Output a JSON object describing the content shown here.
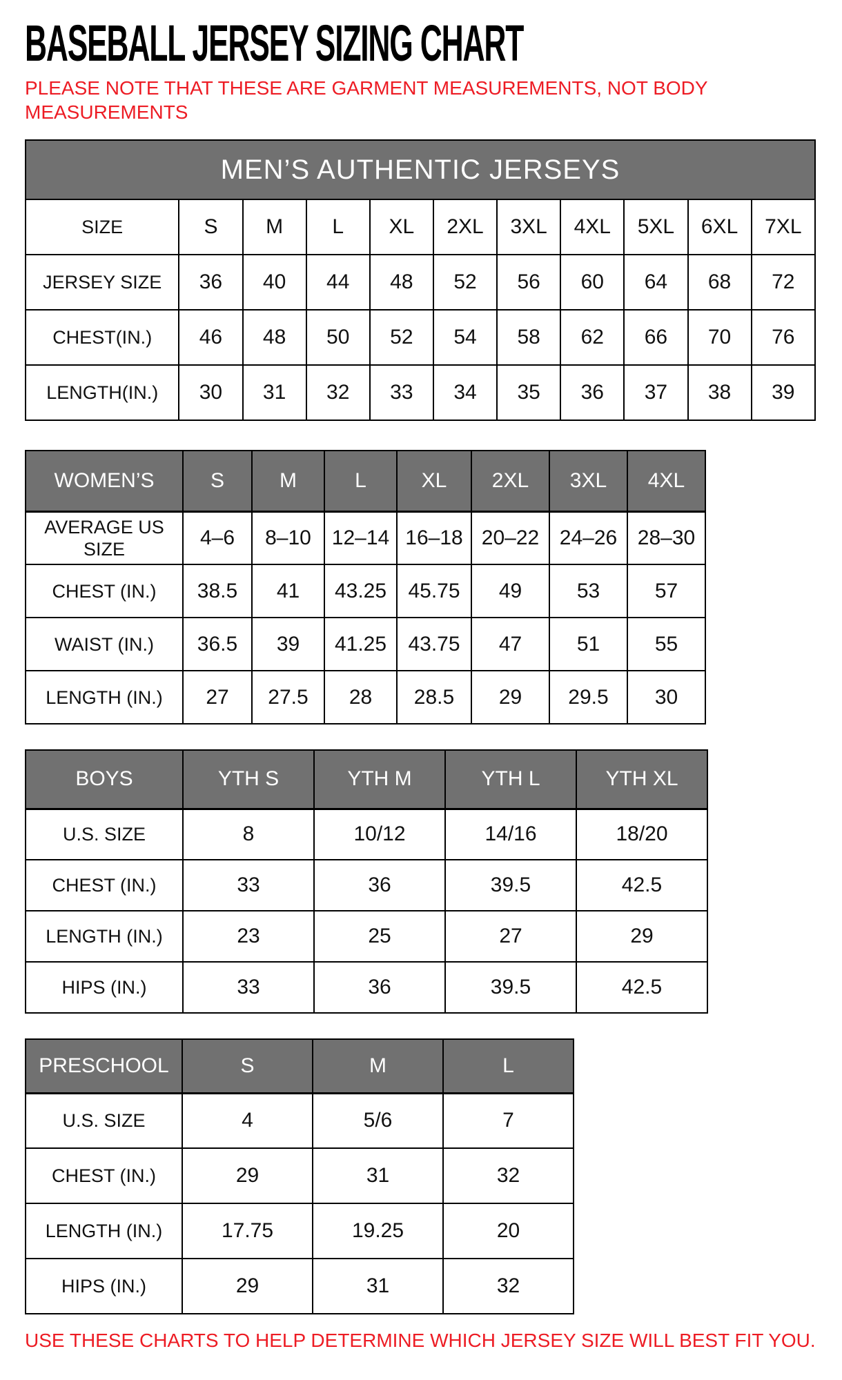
{
  "title": "BASEBALL JERSEY SIZING CHART",
  "note": "PLEASE NOTE THAT THESE ARE GARMENT MEASUREMENTS, NOT BODY MEASUREMENTS",
  "footer": "USE THESE CHARTS TO HELP DETERMINE WHICH JERSEY SIZE WILL BEST FIT YOU.",
  "colors": {
    "accent_red": "#ed1c24",
    "header_gray": "#717171",
    "border_black": "#000000"
  },
  "chart_data": [
    {
      "type": "table",
      "id": "mens",
      "banner": "MEN’S AUTHENTIC JERSEYS",
      "rows": [
        {
          "label": "SIZE",
          "values": [
            "S",
            "M",
            "L",
            "XL",
            "2XL",
            "3XL",
            "4XL",
            "5XL",
            "6XL",
            "7XL"
          ]
        },
        {
          "label": "JERSEY SIZE",
          "values": [
            "36",
            "40",
            "44",
            "48",
            "52",
            "56",
            "60",
            "64",
            "68",
            "72"
          ]
        },
        {
          "label": "CHEST(IN.)",
          "values": [
            "46",
            "48",
            "50",
            "52",
            "54",
            "58",
            "62",
            "66",
            "70",
            "76"
          ]
        },
        {
          "label": "LENGTH(IN.)",
          "values": [
            "30",
            "31",
            "32",
            "33",
            "34",
            "35",
            "36",
            "37",
            "38",
            "39"
          ]
        }
      ]
    },
    {
      "type": "table",
      "id": "womens",
      "header": {
        "label": "WOMEN’S",
        "values": [
          "S",
          "M",
          "L",
          "XL",
          "2XL",
          "3XL",
          "4XL"
        ]
      },
      "rows": [
        {
          "label": "AVERAGE US SIZE",
          "values": [
            "4–6",
            "8–10",
            "12–14",
            "16–18",
            "20–22",
            "24–26",
            "28–30"
          ]
        },
        {
          "label": "CHEST (IN.)",
          "values": [
            "38.5",
            "41",
            "43.25",
            "45.75",
            "49",
            "53",
            "57"
          ]
        },
        {
          "label": "WAIST (IN.)",
          "values": [
            "36.5",
            "39",
            "41.25",
            "43.75",
            "47",
            "51",
            "55"
          ]
        },
        {
          "label": "LENGTH (IN.)",
          "values": [
            "27",
            "27.5",
            "28",
            "28.5",
            "29",
            "29.5",
            "30"
          ]
        }
      ]
    },
    {
      "type": "table",
      "id": "boys",
      "header": {
        "label": "BOYS",
        "values": [
          "YTH S",
          "YTH M",
          "YTH L",
          "YTH XL"
        ]
      },
      "rows": [
        {
          "label": "U.S. SIZE",
          "values": [
            "8",
            "10/12",
            "14/16",
            "18/20"
          ]
        },
        {
          "label": "CHEST (IN.)",
          "values": [
            "33",
            "36",
            "39.5",
            "42.5"
          ]
        },
        {
          "label": "LENGTH (IN.)",
          "values": [
            "23",
            "25",
            "27",
            "29"
          ]
        },
        {
          "label": "HIPS (IN.)",
          "values": [
            "33",
            "36",
            "39.5",
            "42.5"
          ]
        }
      ]
    },
    {
      "type": "table",
      "id": "preschool",
      "header": {
        "label": "PRESCHOOL",
        "values": [
          "S",
          "M",
          "L"
        ]
      },
      "rows": [
        {
          "label": "U.S. SIZE",
          "values": [
            "4",
            "5/6",
            "7"
          ]
        },
        {
          "label": "CHEST (IN.)",
          "values": [
            "29",
            "31",
            "32"
          ]
        },
        {
          "label": "LENGTH (IN.)",
          "values": [
            "17.75",
            "19.25",
            "20"
          ]
        },
        {
          "label": "HIPS (IN.)",
          "values": [
            "29",
            "31",
            "32"
          ]
        }
      ]
    }
  ]
}
